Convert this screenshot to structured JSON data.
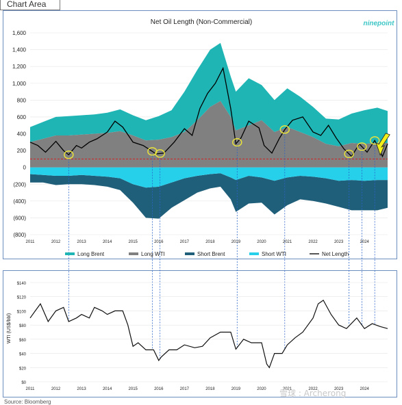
{
  "window": {
    "tab_label": "Chart Area"
  },
  "brand": {
    "logo_text": "ninepoint",
    "color": "#3ec6c6"
  },
  "watermark": "雪球 : Archerong",
  "source": "Source: Bloomberg",
  "colors": {
    "long_brent": "#20b5b5",
    "long_wti": "#808080",
    "short_brent": "#1f5f7a",
    "short_wti": "#26d0ea",
    "net_length": "#000000",
    "zero_ref": "#d22020",
    "markers": "#e8e23a",
    "arrow": "#f2ef1a",
    "guide": "#2a63c9"
  },
  "chart_data": [
    {
      "type": "area",
      "title": "Net Oil Length (Non-Commercial)",
      "xlabel": "",
      "ylabel": "",
      "x_ticks": [
        "2011",
        "2012",
        "2013",
        "2014",
        "2015",
        "2016",
        "2017",
        "2018",
        "2019",
        "2020",
        "2021",
        "2022",
        "2023",
        "2024"
      ],
      "xlim": [
        2011,
        2024.9
      ],
      "ylim": [
        -800,
        1600
      ],
      "y_ticks": [
        "1,600",
        "1,400",
        "1,200",
        "1,000",
        "800",
        "600",
        "400",
        "200",
        "0",
        "(200)",
        "(400)",
        "(600)",
        "(800)"
      ],
      "legend_position": "bottom",
      "legend": [
        "Long Brent",
        "Long WTI",
        "Short Brent",
        "Short WTI",
        "Net Length"
      ],
      "series": [
        {
          "name": "Long WTI",
          "x": [
            2011,
            2011.5,
            2012,
            2012.5,
            2013,
            2013.5,
            2014,
            2014.5,
            2015,
            2015.5,
            2016,
            2016.5,
            2017,
            2017.5,
            2018,
            2018.4,
            2018.8,
            2019,
            2019.5,
            2020,
            2020.5,
            2021,
            2021.5,
            2022,
            2022.5,
            2023,
            2023.5,
            2024,
            2024.5,
            2024.9
          ],
          "values": [
            300,
            340,
            380,
            380,
            390,
            400,
            410,
            430,
            380,
            320,
            330,
            360,
            420,
            560,
            720,
            790,
            600,
            440,
            500,
            560,
            420,
            480,
            420,
            360,
            280,
            250,
            290,
            280,
            290,
            290
          ]
        },
        {
          "name": "Long Brent",
          "x": [
            2011,
            2011.5,
            2012,
            2012.5,
            2013,
            2013.5,
            2014,
            2014.5,
            2015,
            2015.5,
            2016,
            2016.5,
            2017,
            2017.5,
            2018,
            2018.4,
            2018.8,
            2019,
            2019.5,
            2020,
            2020.5,
            2021,
            2021.5,
            2022,
            2022.5,
            2023,
            2023.5,
            2024,
            2024.5,
            2024.9
          ],
          "values": [
            180,
            200,
            220,
            230,
            230,
            230,
            240,
            260,
            240,
            240,
            280,
            320,
            480,
            600,
            680,
            690,
            480,
            460,
            560,
            420,
            380,
            460,
            420,
            360,
            300,
            320,
            350,
            400,
            420,
            380
          ]
        },
        {
          "name": "Short WTI",
          "x": [
            2011,
            2011.5,
            2012,
            2012.5,
            2013,
            2013.5,
            2014,
            2014.5,
            2015,
            2015.5,
            2016,
            2016.5,
            2017,
            2017.5,
            2018,
            2018.4,
            2018.8,
            2019,
            2019.5,
            2020,
            2020.5,
            2021,
            2021.5,
            2022,
            2022.5,
            2023,
            2023.5,
            2024,
            2024.5,
            2024.9
          ],
          "values": [
            -80,
            -90,
            -100,
            -100,
            -90,
            -100,
            -110,
            -130,
            -200,
            -240,
            -230,
            -180,
            -130,
            -100,
            -80,
            -70,
            -120,
            -150,
            -100,
            -120,
            -160,
            -120,
            -100,
            -110,
            -130,
            -160,
            -150,
            -160,
            -150,
            -150
          ]
        },
        {
          "name": "Short Brent",
          "x": [
            2011,
            2011.5,
            2012,
            2012.5,
            2013,
            2013.5,
            2014,
            2014.5,
            2015,
            2015.5,
            2016,
            2016.5,
            2017,
            2017.5,
            2018,
            2018.4,
            2018.8,
            2019,
            2019.5,
            2020,
            2020.5,
            2021,
            2021.5,
            2022,
            2022.5,
            2023,
            2023.5,
            2024,
            2024.5,
            2024.9
          ],
          "values": [
            -100,
            -90,
            -110,
            -100,
            -110,
            -110,
            -120,
            -140,
            -220,
            -360,
            -380,
            -300,
            -260,
            -200,
            -170,
            -160,
            -260,
            -380,
            -330,
            -300,
            -400,
            -330,
            -280,
            -290,
            -300,
            -310,
            -360,
            -350,
            -360,
            -330
          ]
        },
        {
          "name": "Net Length",
          "x": [
            2011,
            2011.3,
            2011.6,
            2012,
            2012.3,
            2012.5,
            2012.8,
            2013,
            2013.3,
            2013.6,
            2014,
            2014.3,
            2014.6,
            2015,
            2015.4,
            2015.7,
            2015.9,
            2016.2,
            2016.6,
            2017,
            2017.3,
            2017.6,
            2017.9,
            2018.2,
            2018.5,
            2018.8,
            2019,
            2019.2,
            2019.5,
            2019.9,
            2020.1,
            2020.4,
            2020.7,
            2020.9,
            2021.2,
            2021.6,
            2022,
            2022.3,
            2022.6,
            2022.9,
            2023.2,
            2023.5,
            2023.8,
            2024.1,
            2024.4,
            2024.7,
            2024.9
          ],
          "values": [
            300,
            260,
            180,
            310,
            200,
            150,
            260,
            230,
            300,
            340,
            420,
            550,
            480,
            300,
            260,
            200,
            160,
            170,
            300,
            460,
            380,
            700,
            880,
            1000,
            1180,
            700,
            280,
            350,
            550,
            470,
            260,
            170,
            350,
            450,
            560,
            600,
            420,
            380,
            500,
            350,
            220,
            130,
            280,
            180,
            320,
            130,
            280
          ]
        },
        {
          "name": "Zero reference (dashed)",
          "values": [
            100
          ]
        }
      ],
      "highlight_circles_x": [
        2012.5,
        2015.75,
        2016.05,
        2019.05,
        2020.9,
        2023.4,
        2023.9,
        2024.4
      ]
    },
    {
      "type": "line",
      "xlabel": "",
      "ylabel": "WTI (US$/bbl)",
      "x_ticks": [
        "2011",
        "2012",
        "2013",
        "2014",
        "2015",
        "2016",
        "2017",
        "2018",
        "2019",
        "2020",
        "2021",
        "2022",
        "2023",
        "2024"
      ],
      "xlim": [
        2011,
        2024.9
      ],
      "ylim": [
        0,
        140
      ],
      "y_ticks": [
        "$140",
        "$120",
        "$100",
        "$80",
        "$60",
        "$40",
        "$20",
        "$0"
      ],
      "series": [
        {
          "name": "WTI",
          "x": [
            2011,
            2011.2,
            2011.4,
            2011.7,
            2012,
            2012.3,
            2012.5,
            2012.8,
            2013,
            2013.3,
            2013.5,
            2013.8,
            2014,
            2014.3,
            2014.6,
            2014.8,
            2015,
            2015.2,
            2015.5,
            2015.8,
            2016,
            2016.1,
            2016.4,
            2016.7,
            2017,
            2017.4,
            2017.7,
            2018,
            2018.4,
            2018.8,
            2019,
            2019.3,
            2019.6,
            2020,
            2020.2,
            2020.3,
            2020.5,
            2020.8,
            2021,
            2021.3,
            2021.6,
            2022,
            2022.2,
            2022.4,
            2022.7,
            2023,
            2023.3,
            2023.7,
            2024,
            2024.3,
            2024.6,
            2024.9
          ],
          "values": [
            90,
            100,
            110,
            85,
            100,
            105,
            85,
            90,
            95,
            90,
            105,
            100,
            95,
            100,
            100,
            80,
            50,
            55,
            45,
            45,
            30,
            35,
            45,
            45,
            52,
            48,
            50,
            62,
            70,
            70,
            46,
            60,
            55,
            55,
            25,
            20,
            40,
            40,
            52,
            62,
            70,
            90,
            110,
            115,
            95,
            80,
            75,
            90,
            75,
            82,
            78,
            75
          ]
        }
      ]
    }
  ]
}
